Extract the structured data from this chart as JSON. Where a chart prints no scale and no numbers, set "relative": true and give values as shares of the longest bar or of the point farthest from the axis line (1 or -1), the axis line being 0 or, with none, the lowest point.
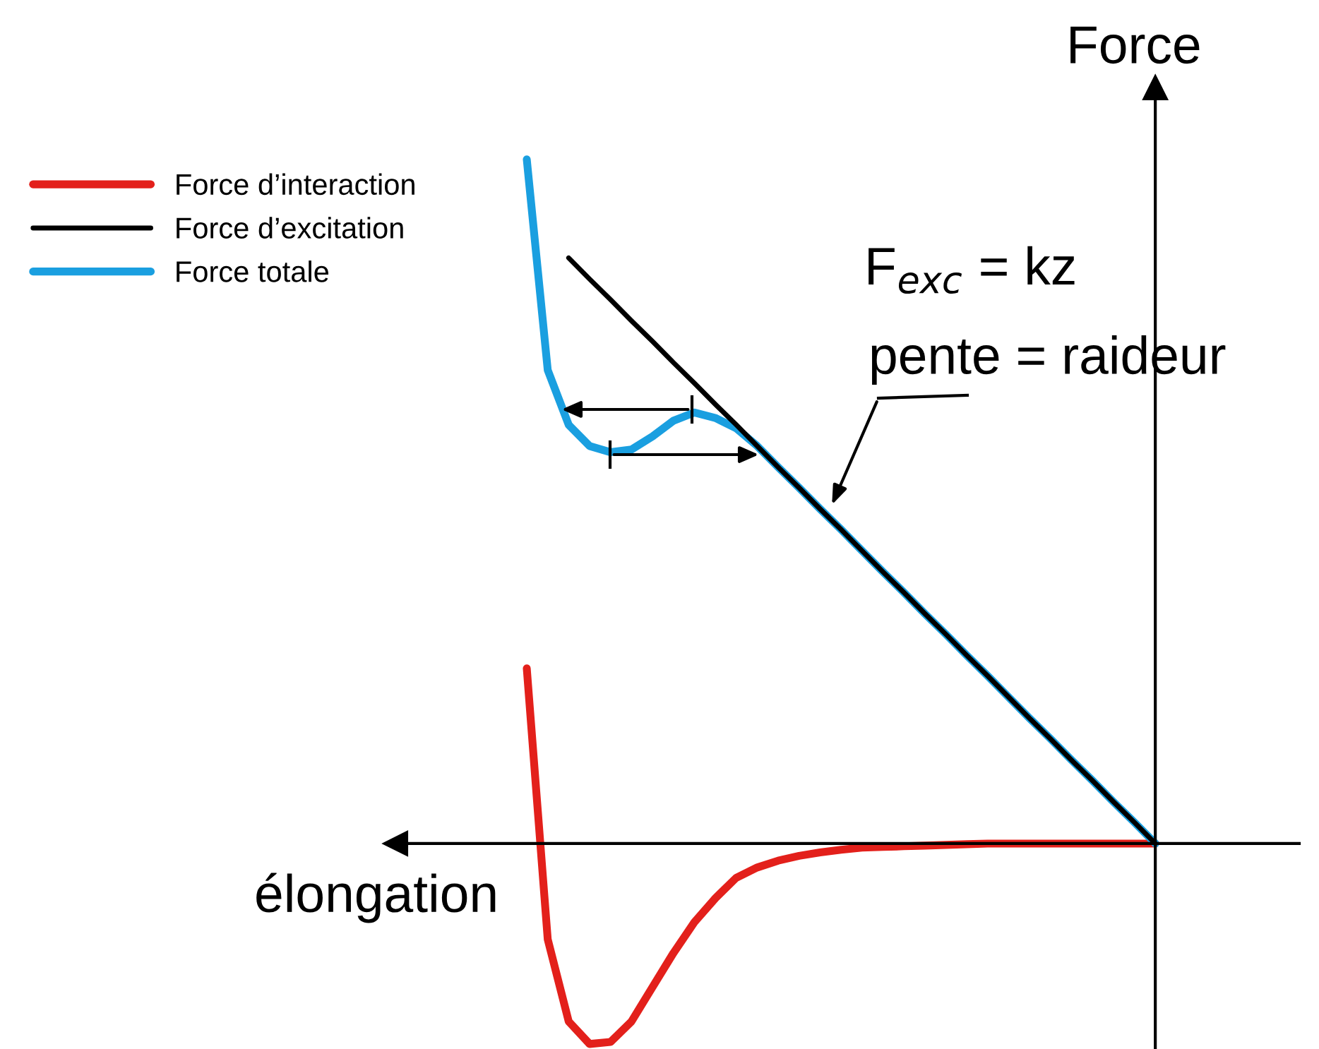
{
  "chart_data": {
    "type": "line",
    "relative": true,
    "xlabel": "élongation",
    "ylabel": "Force",
    "tick_labels": false,
    "legend": "top left",
    "marker": "none",
    "line_style": "solid",
    "annotations": [
      "F$_{exc}$ = kz",
      "pente = raideur"
    ],
    "categories": [
      null,
      null,
      null,
      null,
      null,
      null,
      null,
      null,
      null,
      null,
      null,
      null,
      null,
      null,
      null,
      null,
      null,
      null,
      null,
      null,
      null,
      null,
      null,
      null,
      null,
      null,
      null,
      null,
      null,
      null,
      null
    ],
    "series": [
      {
        "name": "Force d’interaction",
        "color": "#e3201b",
        "values": [
          0.256,
          -0.14,
          -0.26,
          -0.293,
          -0.29,
          -0.26,
          -0.21,
          -0.16,
          -0.115,
          -0.08,
          -0.05,
          -0.035,
          -0.025,
          -0.018,
          -0.013,
          -0.009,
          -0.006,
          -0.005,
          -0.004,
          -0.003,
          -0.002,
          -0.001,
          0,
          0,
          0,
          0,
          0,
          0,
          0,
          0,
          0
        ]
      },
      {
        "name": "Force d’excitation",
        "color": "#000000",
        "values": [
          null,
          null,
          0.856,
          0.825,
          0.795,
          0.764,
          0.734,
          0.703,
          0.673,
          0.642,
          0.612,
          0.581,
          0.55,
          0.52,
          0.489,
          0.459,
          0.428,
          0.397,
          0.367,
          0.336,
          0.306,
          0.275,
          0.245,
          0.214,
          0.183,
          0.153,
          0.122,
          0.092,
          0.061,
          0.031,
          0
        ]
      },
      {
        "name": "Force totale",
        "color": "#1a9fe0",
        "values": [
          1.0,
          0.692,
          0.612,
          0.581,
          0.572,
          0.576,
          0.595,
          0.618,
          0.63,
          0.622,
          0.607,
          0.581,
          0.55,
          0.52,
          0.489,
          0.459,
          0.428,
          0.397,
          0.367,
          0.336,
          0.306,
          0.275,
          0.245,
          0.214,
          0.183,
          0.153,
          0.122,
          0.092,
          0.061,
          0.031,
          0
        ]
      }
    ]
  }
}
